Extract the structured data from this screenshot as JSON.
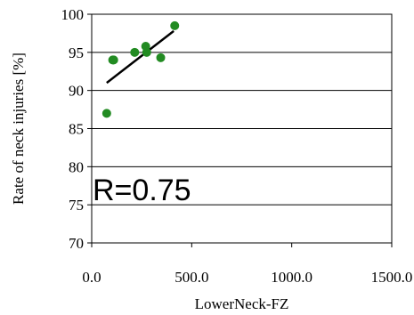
{
  "chart_data": {
    "type": "scatter",
    "title": "",
    "xlabel": "LowerNeck-FZ",
    "ylabel": "Rate of neck injuries [%]",
    "xlim": [
      0,
      1500
    ],
    "ylim": [
      70,
      100
    ],
    "x_ticks": [
      0,
      500,
      1000,
      1500
    ],
    "x_tick_labels": [
      "0.0",
      "500.0",
      "1000.0",
      "1500.0"
    ],
    "y_ticks": [
      70,
      75,
      80,
      85,
      90,
      95,
      100
    ],
    "y_tick_labels": [
      "70",
      "75",
      "80",
      "85",
      "90",
      "95",
      "100"
    ],
    "grid": "horizontal",
    "legend": "none",
    "series": [
      {
        "points": [
          {
            "x": 75,
            "y": 87.0
          },
          {
            "x": 105,
            "y": 94.0
          },
          {
            "x": 110,
            "y": 94.0
          },
          {
            "x": 215,
            "y": 95.0
          },
          {
            "x": 270,
            "y": 95.8
          },
          {
            "x": 275,
            "y": 95.0
          },
          {
            "x": 345,
            "y": 94.3
          },
          {
            "x": 415,
            "y": 98.5
          }
        ]
      }
    ],
    "trendline": {
      "x": [
        75,
        410
      ],
      "y": [
        91.0,
        97.8
      ]
    },
    "annotation": "R=0.75",
    "colors": {
      "points": "#228b22",
      "trendline": "#000000",
      "grid": "#000000",
      "axes": "#000000"
    }
  }
}
